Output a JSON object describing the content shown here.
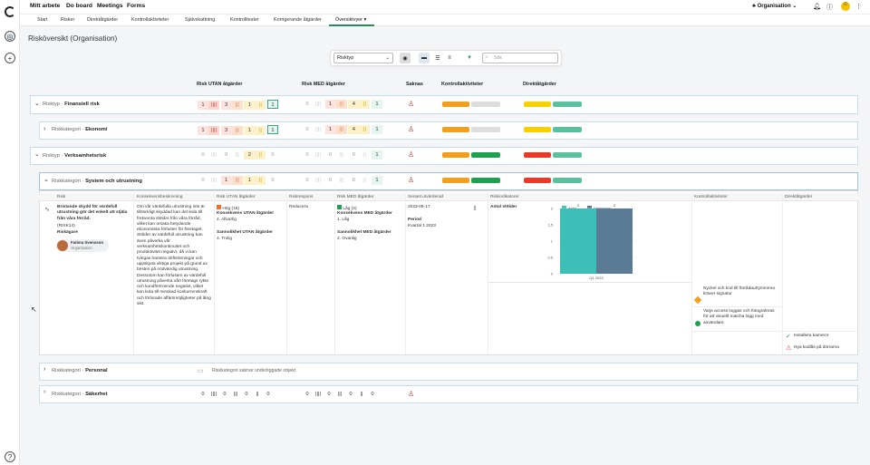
{
  "topnav": {
    "mitt_arbete": "Mitt arbete",
    "do_board": "Do board",
    "meetings": "Meetings",
    "forms": "Forms",
    "org": "Organisation"
  },
  "subnav": [
    "Start",
    "Risker",
    "Direktåtgärder",
    "Kontrollaktiviteter",
    "Självskattning",
    "Kontrolltester",
    "Korrigerande åtgärder",
    "Översiktvyer ▾"
  ],
  "page_title": "Risköversikt (Organisation)",
  "toolbar": {
    "select": "Risktyp",
    "search_placeholder": "Sök"
  },
  "columns": {
    "risk_utan": "Risk UTAN åtgärder",
    "risk_med": "Risk MED åtgärder",
    "saknas": "Saknas",
    "kontroll": "Kontrollaktiviteter",
    "direkt": "Direktåtgärder"
  },
  "rows": [
    {
      "prefix": "Risktyp",
      "name": "Finansiell risk",
      "utan": [
        "1",
        "3",
        "1",
        "1"
      ],
      "med": [
        "0",
        "1",
        "4",
        "1"
      ]
    },
    {
      "prefix": "Riskkategori",
      "name": "Ekonomi",
      "utan": [
        "1",
        "3",
        "1",
        "1"
      ],
      "med": [
        "0",
        "1",
        "4",
        "1"
      ]
    },
    {
      "prefix": "Risktyp",
      "name": "Verksamhetsrisk",
      "utan": [
        "0",
        "0",
        "2",
        "0"
      ],
      "med": [
        "0",
        "0",
        "0",
        "1"
      ]
    },
    {
      "prefix": "Riskkategori",
      "name": "System och utrustning",
      "utan": [
        "0",
        "1",
        "1",
        "0"
      ],
      "med": [
        "0",
        "0",
        "0",
        "1"
      ]
    },
    {
      "prefix": "Riskkategori",
      "name": "Personal",
      "empty": "Riskkategori saknar underliggade objekt"
    },
    {
      "prefix": "Riskkategori",
      "name": "Säkerhet"
    }
  ],
  "detail": {
    "headers": [
      "Risk",
      "Konsekvensbeskrivning",
      "Risk UTAN åtgärder",
      "Riskrespons",
      "Risk MED åtgärder",
      "Senast utvärderad",
      "Riskindikatorer",
      "Kontrollaktiviteter",
      "Direktåtgärder"
    ],
    "risk_title": "Bristande skydd för värdefull utrustning gör det enkelt att stjäla från våra förråd.",
    "risk_id": "(RISK14)",
    "owner_label": "Riskägare",
    "owner_name": "Fatima Svensson",
    "owner_org": "Organisation",
    "konsekvens": "Om vår värdefulla utrustning inte är tillräckligt skyddad kan det leda till frekventa stölder från våra förråd, vilket kan orsaka betydande ekonomiska förluster för företaget. Stölder av värdefull utrustning kan även påverka vår verksamhetskontinuitet och produktivitet negativt, då vi kan tvingas hantera driftstörningar och uppskjuta viktiga projekt på grund av bristen på nödvändig utrustning. Dessutom kan förlusten av värdefull utrustning påverka vårt företags rykte och kundförtroende negativt, vilket kan leda till minskad konkurrenskraft och förlorade affärsmöjligheter på lång sikt.",
    "utan_level": "Hög (16)",
    "utan_kons_label": "Konsekvens UTAN åtgärder",
    "utan_kons": "4. Allvarlig",
    "utan_sann_label": "Sannolikhet UTAN åtgärder",
    "utan_sann": "4. Trolig",
    "respons": "Reducera",
    "med_level": "Låg (2)",
    "med_kons_label": "Konsekvens MED åtgärder",
    "med_kons": "1. Låg",
    "med_sann_label": "Sannolikhet MED åtgärder",
    "med_sann": "2. Ovanlig",
    "date": "2023-05-17",
    "period_label": "Period",
    "period": "Kvartal 1 2023",
    "kontroll": [
      "Nyckel och kod till förrådautrymmena kräver signatur",
      "Varje access loggas och fotograferas för att visuellt matcha logg med användare"
    ],
    "direkt": [
      "Installera kameror",
      "Nya kodlås på dörrarna"
    ]
  },
  "chart_data": {
    "type": "bar",
    "title": "Antal stölder",
    "categories": [
      "Q1 2023"
    ],
    "series": [
      {
        "name": "Antal",
        "values": [
          2
        ],
        "color": "#3dbfb8"
      },
      {
        "name": "Hanterade",
        "values": [
          2
        ],
        "color": "#5b7a93"
      }
    ],
    "ylim": [
      0,
      2
    ],
    "yticks": [
      "0",
      "0,5",
      "1",
      "1,5",
      "2"
    ],
    "data_labels": [
      "2",
      "2"
    ]
  }
}
